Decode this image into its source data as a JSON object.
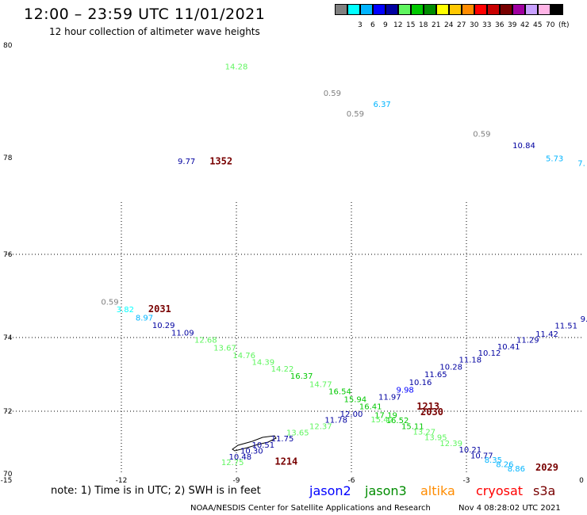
{
  "header": {
    "title": "12:00 – 23:59 UTC 11/01/2021",
    "subtitle": "12 hour collection of altimeter wave heights"
  },
  "colorbar": {
    "unit": "(ft)",
    "swatches": [
      {
        "color": "#808080",
        "label": ""
      },
      {
        "color": "#00ffff",
        "label": "3"
      },
      {
        "color": "#00b4ff",
        "label": "6"
      },
      {
        "color": "#0000ff",
        "label": "9"
      },
      {
        "color": "#0000a0",
        "label": "12"
      },
      {
        "color": "#5ff55f",
        "label": "15"
      },
      {
        "color": "#00c800",
        "label": "18"
      },
      {
        "color": "#008c00",
        "label": "21"
      },
      {
        "color": "#ffff00",
        "label": "24"
      },
      {
        "color": "#ffc800",
        "label": "27"
      },
      {
        "color": "#ff8c00",
        "label": "30"
      },
      {
        "color": "#ff0000",
        "label": "33"
      },
      {
        "color": "#c80000",
        "label": "36"
      },
      {
        "color": "#780000",
        "label": "39"
      },
      {
        "color": "#a000a0",
        "label": "42"
      },
      {
        "color": "#c8a0ff",
        "label": "45"
      },
      {
        "color": "#ffb4e6",
        "label": "70"
      },
      {
        "color": "#000000",
        "label": ""
      }
    ]
  },
  "map": {
    "lat_ticks": [
      "80",
      "78",
      "76",
      "74",
      "72",
      "70"
    ],
    "lon_ticks": [
      "-15",
      "-12",
      "-9",
      "-6",
      "-3",
      "0"
    ]
  },
  "observations": [
    {
      "t": "14.28",
      "lon": -9.0,
      "lat": 79.57,
      "c": "#5ff55f"
    },
    {
      "t": "0.59",
      "lon": -6.5,
      "lat": 79.1,
      "c": "#808080"
    },
    {
      "t": "6.37",
      "lon": -5.2,
      "lat": 78.9,
      "c": "#00b4ff"
    },
    {
      "t": "0.59",
      "lon": -5.9,
      "lat": 78.73,
      "c": "#808080"
    },
    {
      "t": "0.59",
      "lon": -2.6,
      "lat": 78.37,
      "c": "#808080"
    },
    {
      "t": "10.84",
      "lon": -1.5,
      "lat": 78.17,
      "c": "#0000a0"
    },
    {
      "t": "5.73",
      "lon": -0.7,
      "lat": 77.93,
      "c": "#00b4ff"
    },
    {
      "t": "7.",
      "lon": 0.0,
      "lat": 77.83,
      "c": "#00b4ff"
    },
    {
      "t": "9.77",
      "lon": -10.3,
      "lat": 77.87,
      "c": "#0000a0"
    },
    {
      "t": "0.59",
      "lon": -12.3,
      "lat": 74.8,
      "c": "#808080"
    },
    {
      "t": "3.82",
      "lon": -11.9,
      "lat": 74.62,
      "c": "#00ffff"
    },
    {
      "t": "8.97",
      "lon": -11.4,
      "lat": 74.41,
      "c": "#00b4ff"
    },
    {
      "t": "10.29",
      "lon": -10.9,
      "lat": 74.23,
      "c": "#0000a0"
    },
    {
      "t": "11.09",
      "lon": -10.4,
      "lat": 74.05,
      "c": "#0000a0"
    },
    {
      "t": "12.68",
      "lon": -9.8,
      "lat": 73.86,
      "c": "#5ff55f"
    },
    {
      "t": "13.67",
      "lon": -9.3,
      "lat": 73.65,
      "c": "#5ff55f"
    },
    {
      "t": "14.76",
      "lon": -8.8,
      "lat": 73.44,
      "c": "#5ff55f"
    },
    {
      "t": "14.39",
      "lon": -8.3,
      "lat": 73.26,
      "c": "#5ff55f"
    },
    {
      "t": "14.22",
      "lon": -7.8,
      "lat": 73.07,
      "c": "#5ff55f"
    },
    {
      "t": "16.37",
      "lon": -7.3,
      "lat": 72.88,
      "c": "#00c800"
    },
    {
      "t": "14.77",
      "lon": -6.8,
      "lat": 72.66,
      "c": "#5ff55f"
    },
    {
      "t": "16.54",
      "lon": -6.3,
      "lat": 72.46,
      "c": "#00c800"
    },
    {
      "t": "15.94",
      "lon": -5.9,
      "lat": 72.25,
      "c": "#00c800"
    },
    {
      "t": "16.41",
      "lon": -5.5,
      "lat": 72.05,
      "c": "#00c800"
    },
    {
      "t": "17.19",
      "lon": -5.1,
      "lat": 71.79,
      "c": "#00c800"
    },
    {
      "t": "15.42",
      "lon": -5.2,
      "lat": 71.64,
      "c": "#5ff55f"
    },
    {
      "t": "16.52",
      "lon": -4.8,
      "lat": 71.62,
      "c": "#00c800"
    },
    {
      "t": "15.11",
      "lon": -4.4,
      "lat": 71.43,
      "c": "#00c800"
    },
    {
      "t": "13.27",
      "lon": -4.1,
      "lat": 71.25,
      "c": "#5ff55f"
    },
    {
      "t": "13.95",
      "lon": -3.8,
      "lat": 71.07,
      "c": "#5ff55f"
    },
    {
      "t": "12.39",
      "lon": -3.4,
      "lat": 70.88,
      "c": "#5ff55f"
    },
    {
      "t": "10.21",
      "lon": -2.9,
      "lat": 70.68,
      "c": "#0000a0"
    },
    {
      "t": "10.77",
      "lon": -2.6,
      "lat": 70.5,
      "c": "#0000a0"
    },
    {
      "t": "8.35",
      "lon": -2.3,
      "lat": 70.36,
      "c": "#00b4ff"
    },
    {
      "t": "8.26",
      "lon": -2.0,
      "lat": 70.21,
      "c": "#00b4ff"
    },
    {
      "t": "8.86",
      "lon": -1.7,
      "lat": 70.08,
      "c": "#00b4ff"
    },
    {
      "t": "9.",
      "lon": 0.07,
      "lat": 74.38,
      "c": "#0000a0"
    },
    {
      "t": "11.51",
      "lon": -0.4,
      "lat": 74.22,
      "c": "#0000a0"
    },
    {
      "t": "11.42",
      "lon": -0.9,
      "lat": 74.02,
      "c": "#0000a0"
    },
    {
      "t": "11.29",
      "lon": -1.4,
      "lat": 73.86,
      "c": "#0000a0"
    },
    {
      "t": "10.41",
      "lon": -1.9,
      "lat": 73.68,
      "c": "#0000a0"
    },
    {
      "t": "10.12",
      "lon": -2.4,
      "lat": 73.51,
      "c": "#0000a0"
    },
    {
      "t": "11.18",
      "lon": -2.9,
      "lat": 73.32,
      "c": "#0000a0"
    },
    {
      "t": "10.28",
      "lon": -3.4,
      "lat": 73.13,
      "c": "#0000a0"
    },
    {
      "t": "11.65",
      "lon": -3.8,
      "lat": 72.92,
      "c": "#0000a0"
    },
    {
      "t": "10.16",
      "lon": -4.2,
      "lat": 72.71,
      "c": "#0000a0"
    },
    {
      "t": "9.98",
      "lon": -4.6,
      "lat": 72.51,
      "c": "#0000ff"
    },
    {
      "t": "11.97",
      "lon": -5.0,
      "lat": 72.31,
      "c": "#0000a0"
    },
    {
      "t": "12.00",
      "lon": -6.0,
      "lat": 71.82,
      "c": "#0000a0"
    },
    {
      "t": "11.78",
      "lon": -6.4,
      "lat": 71.63,
      "c": "#0000a0"
    },
    {
      "t": "12.37",
      "lon": -6.8,
      "lat": 71.43,
      "c": "#5ff55f"
    },
    {
      "t": "13.65",
      "lon": -7.4,
      "lat": 71.23,
      "c": "#5ff55f"
    },
    {
      "t": "11.75",
      "lon": -7.8,
      "lat": 71.04,
      "c": "#0000a0"
    },
    {
      "t": "10.51",
      "lon": -8.3,
      "lat": 70.84,
      "c": "#0000a0"
    },
    {
      "t": "10.30",
      "lon": -8.6,
      "lat": 70.64,
      "c": "#0000a0"
    },
    {
      "t": "10.48",
      "lon": -8.9,
      "lat": 70.45,
      "c": "#0000a0"
    },
    {
      "t": "12.75",
      "lon": -9.1,
      "lat": 70.28,
      "c": "#5ff55f"
    }
  ],
  "pass_times": [
    {
      "t": "1352",
      "lon": -9.4,
      "lat": 77.86
    },
    {
      "t": "2031",
      "lon": -11.0,
      "lat": 74.62
    },
    {
      "t": "1213",
      "lon": -4.0,
      "lat": 72.04
    },
    {
      "t": "2030",
      "lon": -3.9,
      "lat": 71.87
    },
    {
      "t": "1214",
      "lon": -7.7,
      "lat": 70.29
    },
    {
      "t": "2029",
      "lon": -0.9,
      "lat": 70.1
    }
  ],
  "footer": {
    "note": "note: 1) Time is in UTC; 2) SWH is in feet",
    "satellites": [
      {
        "name": "jason2",
        "color": "#0000ff"
      },
      {
        "name": "jason3",
        "color": "#008c00"
      },
      {
        "name": "altika",
        "color": "#ff8c00"
      },
      {
        "name": "cryosat",
        "color": "#ff0000"
      },
      {
        "name": "s3a",
        "color": "#780000"
      }
    ],
    "credit": "NOAA/NESDIS Center for Satellite Applications and Research",
    "timestamp": "Nov  4 08:28:02 UTC 2021"
  }
}
